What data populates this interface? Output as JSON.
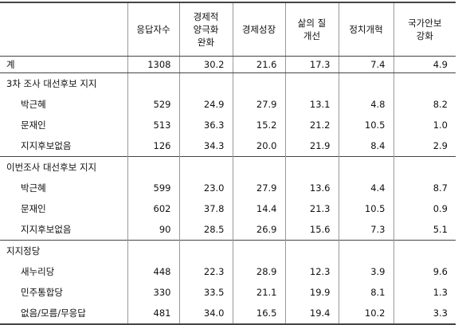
{
  "table": {
    "header": [
      "응답자수",
      "경제적\n양극화\n완화",
      "경제성장",
      "삶의 질\n개선",
      "정치개혁",
      "국가안보\n강화"
    ],
    "total": {
      "label": "계",
      "values": [
        "1308",
        "30.2",
        "21.6",
        "17.3",
        "7.4",
        "4.9"
      ]
    },
    "groups": [
      {
        "title": "3차 조사 대선후보 지지",
        "rows": [
          {
            "label": "박근혜",
            "values": [
              "529",
              "24.9",
              "27.9",
              "13.1",
              "4.8",
              "8.2"
            ]
          },
          {
            "label": "문재인",
            "values": [
              "513",
              "36.3",
              "15.2",
              "21.2",
              "10.5",
              "1.0"
            ]
          },
          {
            "label": "지지후보없음",
            "values": [
              "126",
              "34.3",
              "20.0",
              "21.9",
              "8.4",
              "2.9"
            ]
          }
        ]
      },
      {
        "title": "이번조사 대선후보 지지",
        "rows": [
          {
            "label": "박근혜",
            "values": [
              "599",
              "23.0",
              "27.9",
              "13.6",
              "4.4",
              "8.7"
            ]
          },
          {
            "label": "문재인",
            "values": [
              "602",
              "37.8",
              "14.4",
              "21.3",
              "10.5",
              "0.9"
            ]
          },
          {
            "label": "지지후보없음",
            "values": [
              "90",
              "28.5",
              "26.9",
              "15.6",
              "7.3",
              "5.1"
            ]
          }
        ]
      },
      {
        "title": "지지정당",
        "rows": [
          {
            "label": "새누리당",
            "values": [
              "448",
              "22.3",
              "28.9",
              "12.3",
              "3.9",
              "9.6"
            ]
          },
          {
            "label": "민주통합당",
            "values": [
              "330",
              "33.5",
              "21.1",
              "19.9",
              "8.1",
              "1.3"
            ]
          },
          {
            "label": "없음/모름/무응답",
            "values": [
              "481",
              "34.0",
              "16.5",
              "19.4",
              "10.2",
              "3.3"
            ]
          }
        ]
      }
    ]
  }
}
